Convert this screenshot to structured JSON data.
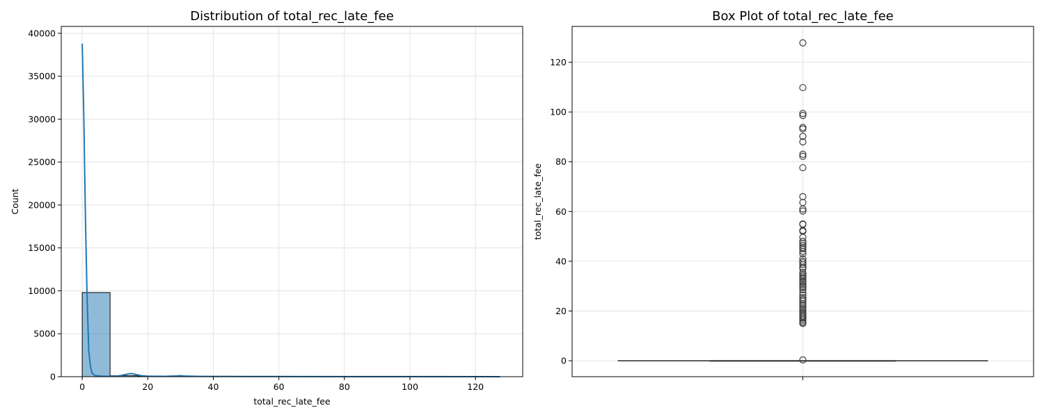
{
  "chart_data": [
    {
      "type": "bar",
      "title": "Distribution of total_rec_late_fee",
      "xlabel": "total_rec_late_fee",
      "ylabel": "Count",
      "xlim": [
        -6.4,
        134.4
      ],
      "ylim": [
        0,
        40800
      ],
      "xticks": [
        "0",
        "20",
        "40",
        "60",
        "80",
        "100",
        "120"
      ],
      "yticks": [
        "0",
        "5000",
        "10000",
        "15000",
        "20000",
        "25000",
        "30000",
        "35000",
        "40000"
      ],
      "grid": true,
      "bar_color": "#1f77b4",
      "bins": [
        {
          "x0": 0,
          "x1": 8.5,
          "count": 9800
        },
        {
          "x0": 8.5,
          "x1": 17,
          "count": 110
        },
        {
          "x0": 17,
          "x1": 25.5,
          "count": 50
        },
        {
          "x0": 25.5,
          "x1": 34,
          "count": 40
        },
        {
          "x0": 34,
          "x1": 42.5,
          "count": 20
        },
        {
          "x0": 42.5,
          "x1": 51,
          "count": 15
        },
        {
          "x0": 51,
          "x1": 59.5,
          "count": 8
        },
        {
          "x0": 59.5,
          "x1": 68,
          "count": 5
        },
        {
          "x0": 68,
          "x1": 76.5,
          "count": 2
        },
        {
          "x0": 76.5,
          "x1": 85,
          "count": 3
        },
        {
          "x0": 85,
          "x1": 93.5,
          "count": 3
        },
        {
          "x0": 93.5,
          "x1": 102,
          "count": 4
        },
        {
          "x0": 102,
          "x1": 110.5,
          "count": 1
        },
        {
          "x0": 110.5,
          "x1": 119,
          "count": 0
        },
        {
          "x0": 119,
          "x1": 127.5,
          "count": 1
        }
      ],
      "kde": {
        "x": [
          0,
          0.5,
          1,
          1.5,
          2,
          2.5,
          3,
          4,
          6,
          8,
          10,
          12,
          14,
          15,
          16,
          18,
          20,
          25,
          29,
          30,
          31,
          35,
          40,
          45,
          50,
          60,
          80,
          100,
          127.5
        ],
        "y": [
          38800,
          30000,
          18000,
          9000,
          3000,
          1200,
          400,
          120,
          60,
          40,
          50,
          150,
          320,
          360,
          280,
          120,
          60,
          40,
          90,
          120,
          80,
          40,
          30,
          35,
          25,
          15,
          10,
          8,
          5
        ]
      }
    },
    {
      "type": "box",
      "title": "Box Plot of total_rec_late_fee",
      "ylabel": "total_rec_late_fee",
      "ylim": [
        -6.4,
        134.4
      ],
      "yticks": [
        "0",
        "20",
        "40",
        "60",
        "80",
        "100",
        "120"
      ],
      "grid": true,
      "box": {
        "q1": 0,
        "median": 0,
        "q3": 0,
        "whisker_low": 0,
        "whisker_high": 0
      },
      "outliers": [
        127.8,
        109.8,
        99.4,
        98.6,
        93.8,
        93.2,
        90.2,
        88.0,
        83.0,
        82.2,
        77.6,
        66.0,
        63.6,
        61.0,
        60.2,
        55.0,
        54.8,
        52.4,
        52.0,
        49.6,
        48.0,
        47.2,
        46.4,
        45.6,
        45.0,
        44.0,
        43.0,
        41.0,
        40.0,
        39.4,
        38.6,
        37.6,
        37.0,
        35.4,
        34.6,
        34.0,
        33.4,
        32.8,
        32.0,
        31.4,
        30.6,
        30.0,
        29.4,
        28.6,
        27.4,
        26.4,
        25.4,
        24.6,
        24.0,
        23.0,
        22.4,
        21.6,
        21.0,
        20.4,
        19.6,
        19.0,
        18.4,
        17.8,
        17.2,
        16.6,
        16.0,
        15.4,
        15.0,
        0.35
      ]
    }
  ]
}
